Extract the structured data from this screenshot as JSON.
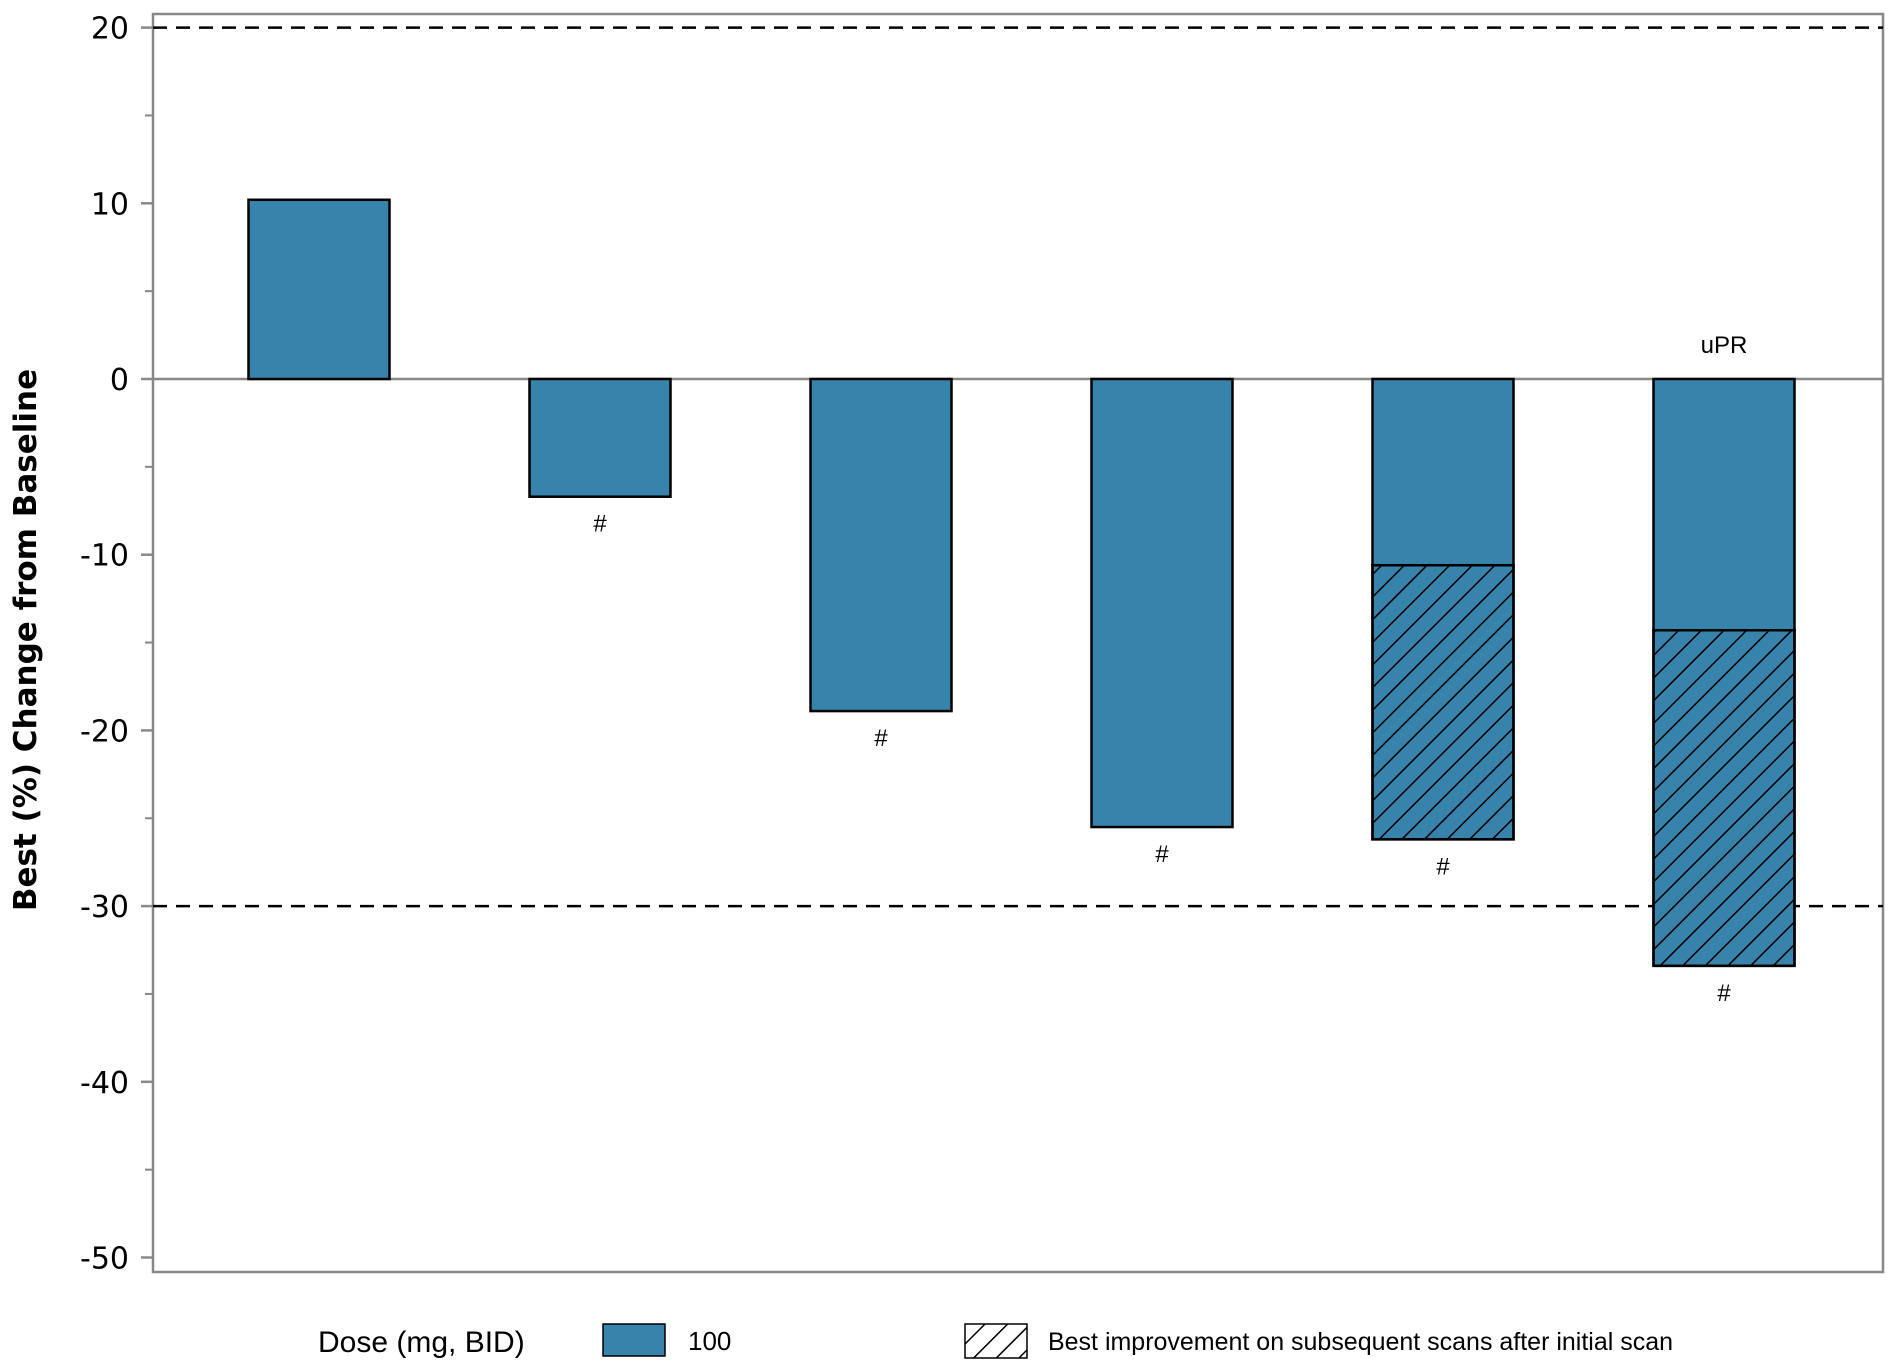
{
  "chart_data": {
    "type": "bar",
    "title": "",
    "xlabel": "",
    "ylabel": "Best (%) Change from Baseline",
    "ylim": [
      -52,
      21
    ],
    "yticks": [
      20,
      10,
      0,
      -10,
      -20,
      -30,
      -40,
      -50
    ],
    "ytick_labels": [
      "20",
      "10",
      "0",
      "-10",
      "-20",
      "-30",
      "-40",
      "-50"
    ],
    "reference_lines": [
      20,
      -30
    ],
    "bar_color": "#3883ab",
    "bars": [
      {
        "initial": 10.2,
        "best": null,
        "note_below": "",
        "note_above": ""
      },
      {
        "initial": -6.7,
        "best": null,
        "note_below": "#",
        "note_above": ""
      },
      {
        "initial": -18.9,
        "best": null,
        "note_below": "#",
        "note_above": ""
      },
      {
        "initial": -25.5,
        "best": null,
        "note_below": "#",
        "note_above": ""
      },
      {
        "initial": -10.6,
        "best": -26.2,
        "note_below": "#",
        "note_above": ""
      },
      {
        "initial": -14.3,
        "best": -33.4,
        "note_below": "#",
        "note_above": "uPR"
      }
    ],
    "legend": {
      "title": "Dose (mg, BID)",
      "items": [
        {
          "label": "100",
          "kind": "solid"
        },
        {
          "label": "Best improvement on subsequent scans after initial scan",
          "kind": "hatched"
        }
      ]
    }
  }
}
